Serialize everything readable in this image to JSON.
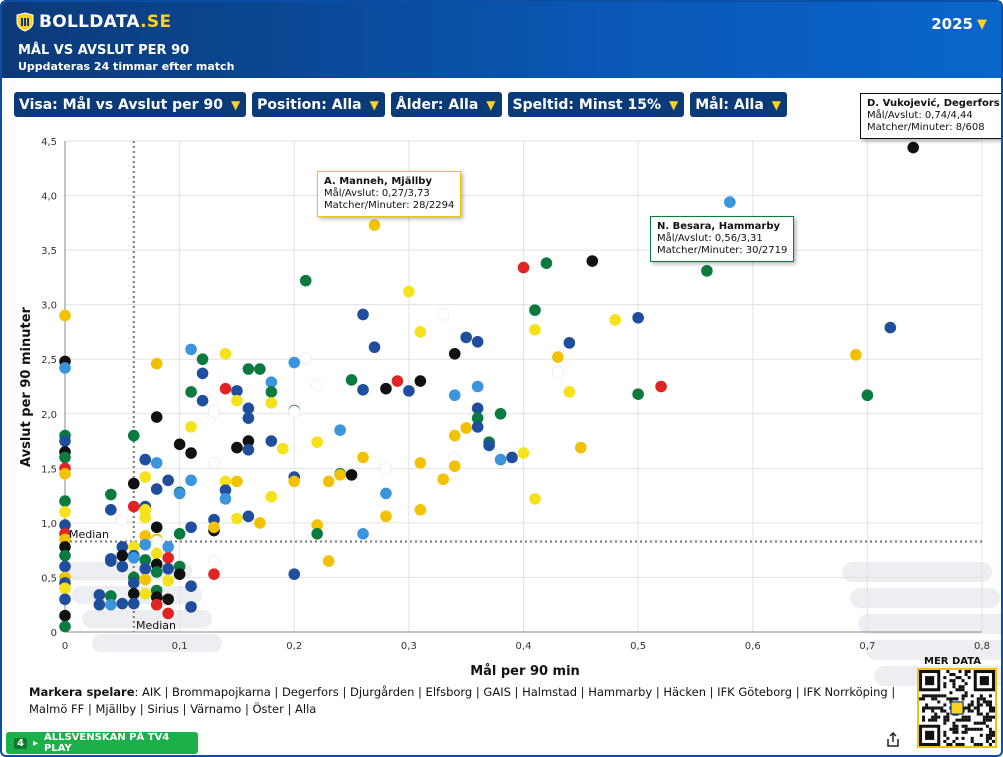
{
  "header": {
    "logo_text": "BOLLDATA",
    "logo_suffix": ".SE",
    "title": "MÅL VS AVSLUT PER 90",
    "subtitle": "Uppdateras 24 timmar efter match",
    "year": "2025"
  },
  "filters": [
    {
      "label": "Visa: Mål vs Avslut per 90"
    },
    {
      "label": "Position: Alla"
    },
    {
      "label": "Ålder: Alla"
    },
    {
      "label": "Speltid: Minst 15%"
    },
    {
      "label": "Mål: Alla"
    }
  ],
  "tooltips": [
    {
      "name": "D. Vukojević, Degerfors",
      "line1": "Mål/Avslut: 0,74/4,44",
      "line2": "Matcher/Minuter: 8/608",
      "border": "#111111"
    },
    {
      "name": "A. Manneh, Mjällby",
      "line1": "Mål/Avslut: 0,27/3,73",
      "line2": "Matcher/Minuter: 28/2294",
      "border": "#f2c200"
    },
    {
      "name": "N. Besara, Hammarby",
      "line1": "Mål/Avslut: 0,56/3,31",
      "line2": "Matcher/Minuter: 30/2719",
      "border": "#0b7a3e"
    }
  ],
  "legend": {
    "prefix": "Markera spelare",
    "teams": "AIK | Brommapojkarna | Degerfors | Djurgården | Elfsborg | GAIS | Halmstad | Hammarby | Häcken | IFK Göteborg | IFK Norrköping | Malmö FF | Mjällby | Sirius | Värnamo | Öster | Alla"
  },
  "banner": {
    "number": "4",
    "text": "ALLSVENSKAN PÅ TV4 PLAY"
  },
  "mer_data": "MER DATA",
  "colors": {
    "black": "#111111",
    "navy": "#1f4e9c",
    "sky": "#3a95dc",
    "yellow": "#f5e21a",
    "gold": "#f2c200",
    "green": "#0b7a3e",
    "red": "#e02424",
    "white": "#ffffff",
    "accent": "#ffd21f"
  },
  "chart_data": {
    "type": "scatter",
    "xlabel": "Mål per 90 min",
    "ylabel": "Avslut per 90 minuter",
    "xlim": [
      0,
      0.8
    ],
    "ylim": [
      0,
      4.5
    ],
    "xticks": [
      "0",
      "0,1",
      "0,2",
      "0,3",
      "0,4",
      "0,5",
      "0,6",
      "0,7",
      "0,8"
    ],
    "yticks": [
      "0",
      "0,5",
      "1,0",
      "1,5",
      "2,0",
      "2,5",
      "3,0",
      "3,5",
      "4,0",
      "4,5"
    ],
    "median_x": 0.06,
    "median_y": 0.83,
    "median_label": "Median",
    "grid": true,
    "points": [
      [
        0.74,
        4.44,
        "black"
      ],
      [
        0.27,
        3.73,
        "gold"
      ],
      [
        0.56,
        3.31,
        "green"
      ],
      [
        0.58,
        3.94,
        "sky"
      ],
      [
        0.46,
        3.4,
        "black"
      ],
      [
        0.42,
        3.38,
        "green"
      ],
      [
        0.4,
        3.34,
        "red"
      ],
      [
        0.21,
        3.22,
        "green"
      ],
      [
        0.3,
        3.12,
        "yellow"
      ],
      [
        0.41,
        2.95,
        "green"
      ],
      [
        0.33,
        2.91,
        "white"
      ],
      [
        0.26,
        2.91,
        "navy"
      ],
      [
        0.5,
        2.88,
        "navy"
      ],
      [
        0.48,
        2.86,
        "yellow"
      ],
      [
        0.72,
        2.79,
        "navy"
      ],
      [
        0.41,
        2.77,
        "yellow"
      ],
      [
        0.31,
        2.75,
        "yellow"
      ],
      [
        0.35,
        2.7,
        "navy"
      ],
      [
        0.36,
        2.66,
        "navy"
      ],
      [
        0.44,
        2.65,
        "navy"
      ],
      [
        0.27,
        2.61,
        "navy"
      ],
      [
        0.11,
        2.59,
        "sky"
      ],
      [
        0.34,
        2.55,
        "black"
      ],
      [
        0.43,
        2.52,
        "gold"
      ],
      [
        0.69,
        2.54,
        "gold"
      ],
      [
        0.14,
        2.55,
        "yellow"
      ],
      [
        0.12,
        2.5,
        "green"
      ],
      [
        0.2,
        2.47,
        "sky"
      ],
      [
        0.21,
        2.51,
        "white"
      ],
      [
        0.08,
        2.46,
        "gold"
      ],
      [
        0.16,
        2.41,
        "green"
      ],
      [
        0.17,
        2.41,
        "green"
      ],
      [
        0.12,
        2.37,
        "navy"
      ],
      [
        0.43,
        2.38,
        "white"
      ],
      [
        0.25,
        2.31,
        "green"
      ],
      [
        0.31,
        2.3,
        "black"
      ],
      [
        0.29,
        2.3,
        "red"
      ],
      [
        0.18,
        2.29,
        "sky"
      ],
      [
        0.22,
        2.26,
        "white"
      ],
      [
        0.36,
        2.25,
        "sky"
      ],
      [
        0.28,
        2.23,
        "black"
      ],
      [
        0.14,
        2.23,
        "red"
      ],
      [
        0.15,
        2.21,
        "navy"
      ],
      [
        0.26,
        2.22,
        "navy"
      ],
      [
        0.3,
        2.21,
        "navy"
      ],
      [
        0.11,
        2.2,
        "green"
      ],
      [
        0.18,
        2.2,
        "green"
      ],
      [
        0.44,
        2.2,
        "yellow"
      ],
      [
        0.52,
        2.25,
        "red"
      ],
      [
        0.5,
        2.18,
        "green"
      ],
      [
        0.7,
        2.17,
        "green"
      ],
      [
        0.34,
        2.17,
        "sky"
      ],
      [
        0.12,
        2.12,
        "navy"
      ],
      [
        0.15,
        2.12,
        "yellow"
      ],
      [
        0.18,
        2.1,
        "yellow"
      ],
      [
        0.13,
        2.02,
        "white"
      ],
      [
        0.16,
        2.05,
        "navy"
      ],
      [
        0.2,
        2.03,
        "green"
      ],
      [
        0.2,
        2.02,
        "white"
      ],
      [
        0.36,
        2.05,
        "navy"
      ],
      [
        0.38,
        2.0,
        "green"
      ],
      [
        0.08,
        1.97,
        "black"
      ],
      [
        0.16,
        1.96,
        "navy"
      ],
      [
        0.36,
        1.96,
        "green"
      ],
      [
        0.36,
        1.88,
        "navy"
      ],
      [
        0.11,
        1.88,
        "yellow"
      ],
      [
        0.24,
        1.85,
        "sky"
      ],
      [
        0.35,
        1.87,
        "gold"
      ],
      [
        0.34,
        1.8,
        "gold"
      ],
      [
        0.06,
        1.8,
        "green"
      ],
      [
        0.16,
        1.75,
        "black"
      ],
      [
        0.18,
        1.75,
        "navy"
      ],
      [
        0.22,
        1.74,
        "yellow"
      ],
      [
        0.1,
        1.72,
        "black"
      ],
      [
        0.37,
        1.74,
        "green"
      ],
      [
        0.37,
        1.71,
        "navy"
      ],
      [
        0.15,
        1.69,
        "black"
      ],
      [
        0.16,
        1.67,
        "navy"
      ],
      [
        0.19,
        1.68,
        "yellow"
      ],
      [
        0.45,
        1.69,
        "gold"
      ],
      [
        0.11,
        1.64,
        "black"
      ],
      [
        0.26,
        1.6,
        "gold"
      ],
      [
        0.34,
        1.6,
        "white"
      ],
      [
        0.38,
        1.58,
        "sky"
      ],
      [
        0.39,
        1.6,
        "navy"
      ],
      [
        0.4,
        1.64,
        "yellow"
      ],
      [
        0.07,
        1.58,
        "navy"
      ],
      [
        0.08,
        1.55,
        "sky"
      ],
      [
        0.13,
        1.55,
        "white"
      ],
      [
        0.31,
        1.55,
        "gold"
      ],
      [
        0.34,
        1.52,
        "gold"
      ],
      [
        0.28,
        1.5,
        "white"
      ],
      [
        0.24,
        1.45,
        "green"
      ],
      [
        0.24,
        1.44,
        "gold"
      ],
      [
        0.25,
        1.44,
        "black"
      ],
      [
        0.2,
        1.42,
        "navy"
      ],
      [
        0.07,
        1.42,
        "yellow"
      ],
      [
        0.09,
        1.39,
        "navy"
      ],
      [
        0.11,
        1.39,
        "sky"
      ],
      [
        0.14,
        1.38,
        "yellow"
      ],
      [
        0.15,
        1.38,
        "gold"
      ],
      [
        0.2,
        1.38,
        "gold"
      ],
      [
        0.23,
        1.38,
        "gold"
      ],
      [
        0.33,
        1.4,
        "gold"
      ],
      [
        0.06,
        1.36,
        "black"
      ],
      [
        0.08,
        1.31,
        "navy"
      ],
      [
        0.1,
        1.28,
        "green"
      ],
      [
        0.1,
        1.27,
        "sky"
      ],
      [
        0.14,
        1.3,
        "navy"
      ],
      [
        0.18,
        1.24,
        "yellow"
      ],
      [
        0.28,
        1.27,
        "sky"
      ],
      [
        0.04,
        1.26,
        "green"
      ],
      [
        0.41,
        1.22,
        "yellow"
      ],
      [
        0.14,
        1.22,
        "sky"
      ],
      [
        0.06,
        1.15,
        "red"
      ],
      [
        0.07,
        1.15,
        "navy"
      ],
      [
        0.07,
        1.12,
        "yellow"
      ],
      [
        0.04,
        1.12,
        "navy"
      ],
      [
        0.31,
        1.12,
        "gold"
      ],
      [
        0.05,
        1.03,
        "white"
      ],
      [
        0.07,
        1.05,
        "yellow"
      ],
      [
        0.13,
        1.03,
        "navy"
      ],
      [
        0.15,
        1.04,
        "yellow"
      ],
      [
        0.16,
        1.06,
        "navy"
      ],
      [
        0.17,
        1.0,
        "gold"
      ],
      [
        0.22,
        0.98,
        "gold"
      ],
      [
        0.28,
        1.06,
        "gold"
      ],
      [
        0.08,
        0.96,
        "black"
      ],
      [
        0.11,
        0.96,
        "navy"
      ],
      [
        0.13,
        0.93,
        "black"
      ],
      [
        0.13,
        0.96,
        "gold"
      ],
      [
        0.1,
        0.9,
        "green"
      ],
      [
        0.22,
        0.9,
        "green"
      ],
      [
        0.26,
        0.9,
        "sky"
      ],
      [
        0.07,
        0.88,
        "gold"
      ],
      [
        0.08,
        0.85,
        "gold"
      ],
      [
        0.08,
        0.83,
        "white"
      ],
      [
        0.07,
        0.8,
        "sky"
      ],
      [
        0.05,
        0.78,
        "navy"
      ],
      [
        0.06,
        0.78,
        "yellow"
      ],
      [
        0.09,
        0.78,
        "sky"
      ],
      [
        0.08,
        0.72,
        "yellow"
      ],
      [
        0.05,
        0.7,
        "black"
      ],
      [
        0.06,
        0.7,
        "navy"
      ],
      [
        0.06,
        0.68,
        "sky"
      ],
      [
        0.07,
        0.66,
        "green"
      ],
      [
        0.09,
        0.68,
        "red"
      ],
      [
        0.04,
        0.67,
        "navy"
      ],
      [
        0.04,
        0.65,
        "navy"
      ],
      [
        0.13,
        0.65,
        "white"
      ],
      [
        0.23,
        0.65,
        "gold"
      ],
      [
        0.08,
        0.62,
        "black"
      ],
      [
        0.1,
        0.6,
        "green"
      ],
      [
        0.09,
        0.58,
        "navy"
      ],
      [
        0.07,
        0.58,
        "navy"
      ],
      [
        0.05,
        0.6,
        "navy"
      ],
      [
        0.08,
        0.55,
        "green"
      ],
      [
        0.1,
        0.53,
        "black"
      ],
      [
        0.13,
        0.53,
        "red"
      ],
      [
        0.2,
        0.53,
        "navy"
      ],
      [
        0.06,
        0.5,
        "green"
      ],
      [
        0.07,
        0.48,
        "gold"
      ],
      [
        0.09,
        0.47,
        "yellow"
      ],
      [
        0.11,
        0.42,
        "navy"
      ],
      [
        0.06,
        0.45,
        "navy"
      ],
      [
        0.08,
        0.38,
        "green"
      ],
      [
        0.06,
        0.35,
        "black"
      ],
      [
        0.07,
        0.35,
        "yellow"
      ],
      [
        0.03,
        0.34,
        "navy"
      ],
      [
        0.04,
        0.33,
        "green"
      ],
      [
        0.08,
        0.32,
        "black"
      ],
      [
        0.09,
        0.3,
        "black"
      ],
      [
        0.05,
        0.26,
        "navy"
      ],
      [
        0.06,
        0.26,
        "navy"
      ],
      [
        0.03,
        0.25,
        "navy"
      ],
      [
        0.04,
        0.25,
        "sky"
      ],
      [
        0.08,
        0.25,
        "red"
      ],
      [
        0.11,
        0.23,
        "navy"
      ],
      [
        0.09,
        0.17,
        "red"
      ],
      [
        0,
        2.9,
        "gold"
      ],
      [
        0,
        2.48,
        "black"
      ],
      [
        0,
        2.42,
        "sky"
      ],
      [
        0,
        1.8,
        "green"
      ],
      [
        0,
        1.75,
        "navy"
      ],
      [
        0,
        1.65,
        "black"
      ],
      [
        0,
        1.6,
        "green"
      ],
      [
        0,
        1.5,
        "red"
      ],
      [
        0,
        1.45,
        "gold"
      ],
      [
        0,
        1.2,
        "green"
      ],
      [
        0,
        1.1,
        "yellow"
      ],
      [
        0,
        0.98,
        "navy"
      ],
      [
        0,
        0.9,
        "red"
      ],
      [
        0,
        0.85,
        "gold"
      ],
      [
        0,
        0.78,
        "black"
      ],
      [
        0,
        0.7,
        "green"
      ],
      [
        0,
        0.6,
        "navy"
      ],
      [
        0,
        0.5,
        "gold"
      ],
      [
        0,
        0.45,
        "navy"
      ],
      [
        0,
        0.4,
        "yellow"
      ],
      [
        0,
        0.3,
        "navy"
      ],
      [
        0,
        0.15,
        "black"
      ],
      [
        0,
        0.05,
        "green"
      ]
    ]
  }
}
